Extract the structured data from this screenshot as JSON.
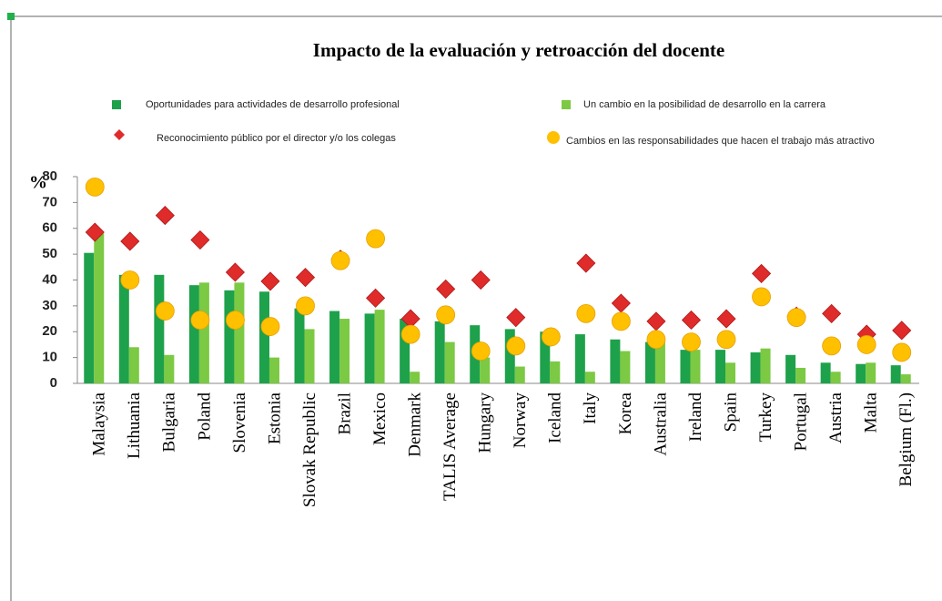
{
  "chart_data": {
    "type": "bar",
    "title": "Impacto de la evaluación y retroacción del docente",
    "y_label": "%",
    "categories": [
      "Malaysia",
      "Lithuania",
      "Bulgaria",
      "Poland",
      "Slovenia",
      "Estonia",
      "Slovak Republic",
      "Brazil",
      "Mexico",
      "Denmark",
      "TALIS Average",
      "Hungary",
      "Norway",
      "Iceland",
      "Italy",
      "Korea",
      "Australia",
      "Ireland",
      "Spain",
      "Turkey",
      "Portugal",
      "Austria",
      "Malta",
      "Belgium (Fl.)"
    ],
    "series": [
      {
        "name": "Oportunidades para actividades de desarrollo profesional",
        "type": "bar",
        "color": "#1ea14b",
        "values": [
          50.5,
          42,
          42,
          38,
          36,
          35.5,
          29,
          28,
          27,
          25,
          24,
          22.5,
          21,
          20,
          19,
          17,
          16,
          13,
          13,
          12,
          11,
          8,
          7.5,
          7
        ]
      },
      {
        "name": "Un cambio en la posibilidad de desarrollo en la carrera",
        "type": "bar",
        "color": "#7cc943",
        "values": [
          58,
          14,
          11,
          39,
          39,
          10,
          21,
          25,
          28.5,
          4.5,
          16,
          10,
          6.5,
          8.5,
          4.5,
          12.5,
          16,
          13,
          8,
          13.5,
          6,
          4.5,
          8,
          3.5
        ]
      },
      {
        "name": "Reconocimiento público por el director y/o los colegas",
        "type": "scatter",
        "marker": "diamond",
        "color": "#e02b2b",
        "values": [
          58.5,
          55,
          65,
          55.5,
          43,
          39.5,
          41,
          48,
          33,
          25,
          36.5,
          40,
          25.5,
          18,
          46.5,
          31,
          24,
          24.5,
          25,
          42.5,
          26,
          27,
          19,
          20.5
        ]
      },
      {
        "name": "Cambios en las responsabilidades que hacen el trabajo más atractivo",
        "type": "scatter",
        "marker": "circle",
        "color": "#ffc000",
        "values": [
          76,
          40,
          28,
          24.5,
          24.5,
          22,
          30,
          47.5,
          56,
          19,
          26.5,
          12.5,
          14.5,
          18,
          27,
          24,
          17,
          16,
          17,
          33.5,
          25.5,
          14.5,
          15,
          12
        ]
      }
    ],
    "ylim": [
      0,
      80
    ],
    "yticks": [
      0,
      10,
      20,
      30,
      40,
      50,
      60,
      70,
      80
    ],
    "grid": false
  }
}
